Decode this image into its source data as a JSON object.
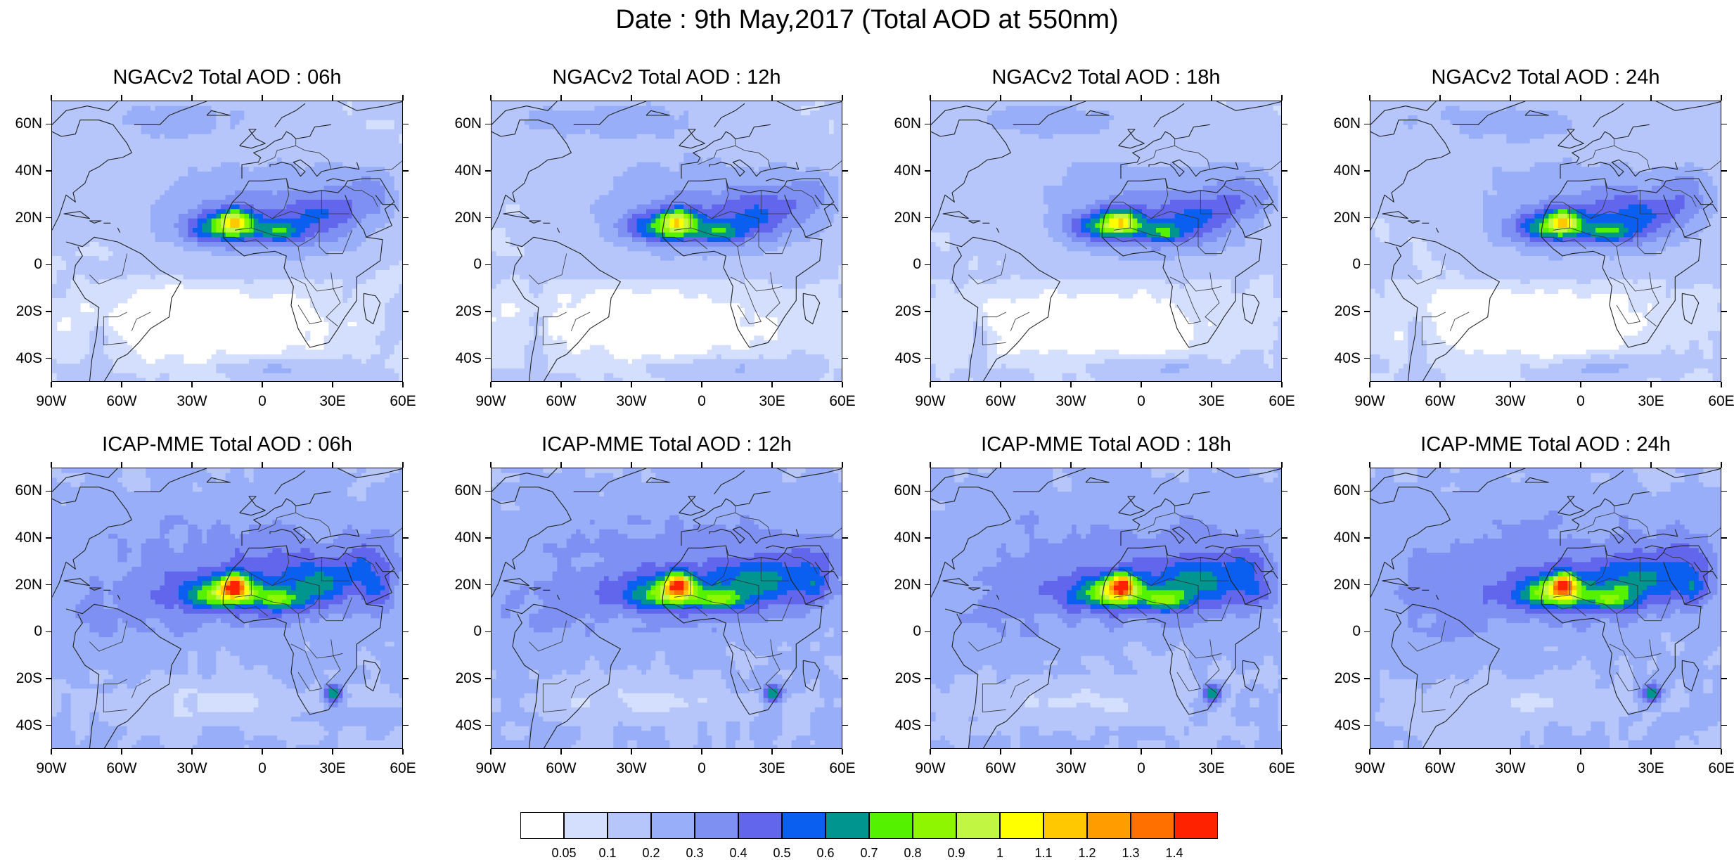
{
  "page_title": "Date : 9th May,2017 (Total AOD at 550nm)",
  "axes": {
    "lat_labels": [
      "60N",
      "40N",
      "20N",
      "0",
      "20S",
      "40S"
    ],
    "lat_values": [
      60,
      40,
      20,
      0,
      -20,
      -40
    ],
    "lon_labels": [
      "90W",
      "60W",
      "30W",
      "0",
      "30E",
      "60E"
    ],
    "lon_values": [
      -90,
      -60,
      -30,
      0,
      30,
      60
    ],
    "lon_range": [
      -90,
      60
    ],
    "lat_range": [
      -50,
      70
    ]
  },
  "panels": [
    {
      "title": "NGACv2 Total AOD : 06h",
      "model": "ngac"
    },
    {
      "title": "NGACv2 Total AOD : 12h",
      "model": "ngac"
    },
    {
      "title": "NGACv2 Total AOD : 18h",
      "model": "ngac"
    },
    {
      "title": "NGACv2 Total AOD : 24h",
      "model": "ngac"
    },
    {
      "title": "ICAP-MME Total AOD : 06h",
      "model": "icap"
    },
    {
      "title": "ICAP-MME Total AOD : 12h",
      "model": "icap"
    },
    {
      "title": "ICAP-MME Total AOD : 18h",
      "model": "icap"
    },
    {
      "title": "ICAP-MME Total AOD : 24h",
      "model": "icap"
    }
  ],
  "colorbar": {
    "levels": [
      "0.05",
      "0.1",
      "0.2",
      "0.3",
      "0.4",
      "0.5",
      "0.6",
      "0.7",
      "0.8",
      "0.9",
      "1",
      "1.1",
      "1.2",
      "1.3",
      "1.4"
    ],
    "colors": [
      "#ffffff",
      "#d4dffd",
      "#b6c6fb",
      "#98aef8",
      "#7e91f3",
      "#6266ec",
      "#0a5ff0",
      "#00958e",
      "#55f200",
      "#8ef700",
      "#c1f643",
      "#ffff00",
      "#ffc800",
      "#ff9c00",
      "#ff7000",
      "#ff2200"
    ]
  }
}
